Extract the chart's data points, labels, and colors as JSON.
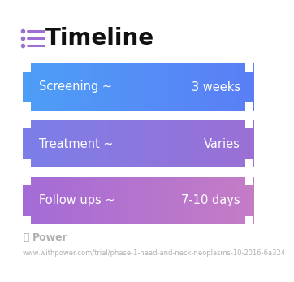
{
  "title": "Timeline",
  "title_icon_color": "#9b6fd4",
  "title_fontsize": 20,
  "title_fontweight": "bold",
  "title_color": "#111111",
  "background_color": "#ffffff",
  "rows": [
    {
      "label": "Screening ~",
      "value": "3 weeks",
      "color_left": "#4d9ef7",
      "color_right": "#5b7ef5"
    },
    {
      "label": "Treatment ~",
      "value": "Varies",
      "color_left": "#7b7ee8",
      "color_right": "#9b6fd4"
    },
    {
      "label": "Follow ups ~",
      "value": "7-10 days",
      "color_left": "#a46bd6",
      "color_right": "#c47cc5"
    }
  ],
  "footer_text": "Power",
  "footer_url": "www.withpower.com/trial/phase-1-head-and-neck-neoplasms-10-2016-6a324",
  "text_fontsize": 10.5,
  "text_color": "#ffffff"
}
